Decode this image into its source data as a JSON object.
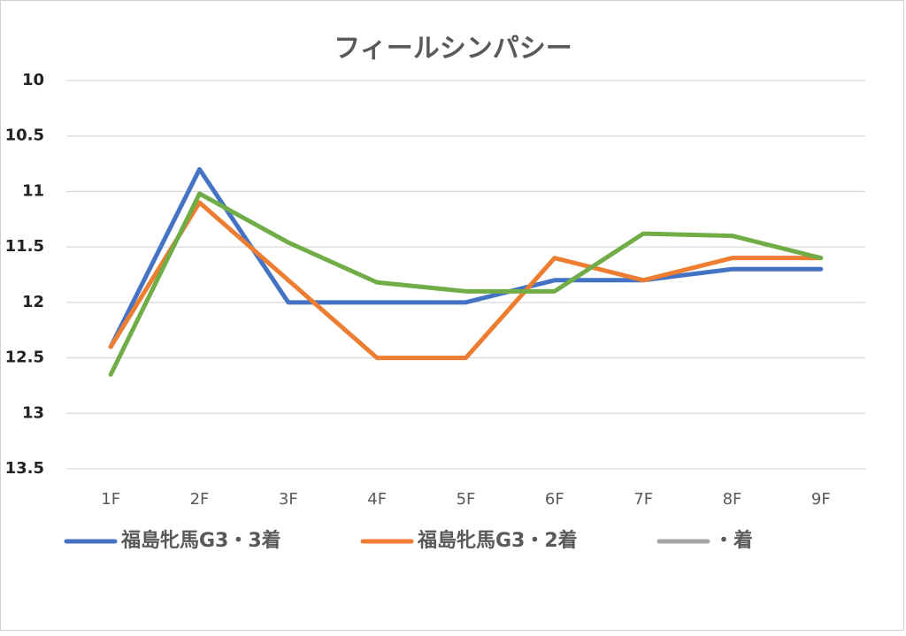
{
  "chart_data": {
    "type": "line",
    "title": "フィールシンパシー",
    "categories": [
      "1F",
      "2F",
      "3F",
      "4F",
      "5F",
      "6F",
      "7F",
      "8F",
      "9F"
    ],
    "series": [
      {
        "name": "福島牝馬G3・3着",
        "color": "#4472c4",
        "values": [
          12.4,
          10.8,
          12.0,
          12.0,
          12.0,
          11.8,
          11.8,
          11.7,
          11.7
        ]
      },
      {
        "name": "福島牝馬G3・2着",
        "color": "#ed7d31",
        "values": [
          12.4,
          11.1,
          11.8,
          12.5,
          12.5,
          11.6,
          11.8,
          11.6,
          11.6
        ]
      },
      {
        "name": "・着",
        "color": "#a5a5a5",
        "values": [
          null,
          null,
          null,
          null,
          null,
          null,
          null,
          null,
          null
        ]
      },
      {
        "color": "#70ad47",
        "values": [
          12.65,
          11.02,
          11.46,
          11.82,
          11.9,
          11.9,
          11.38,
          11.4,
          11.6
        ]
      }
    ],
    "ylim": [
      10,
      13.5
    ],
    "yticks": [
      10,
      10.5,
      11,
      11.5,
      12,
      12.5,
      13,
      13.5
    ],
    "y_reversed": true,
    "grid": true,
    "legend": "bottom"
  }
}
